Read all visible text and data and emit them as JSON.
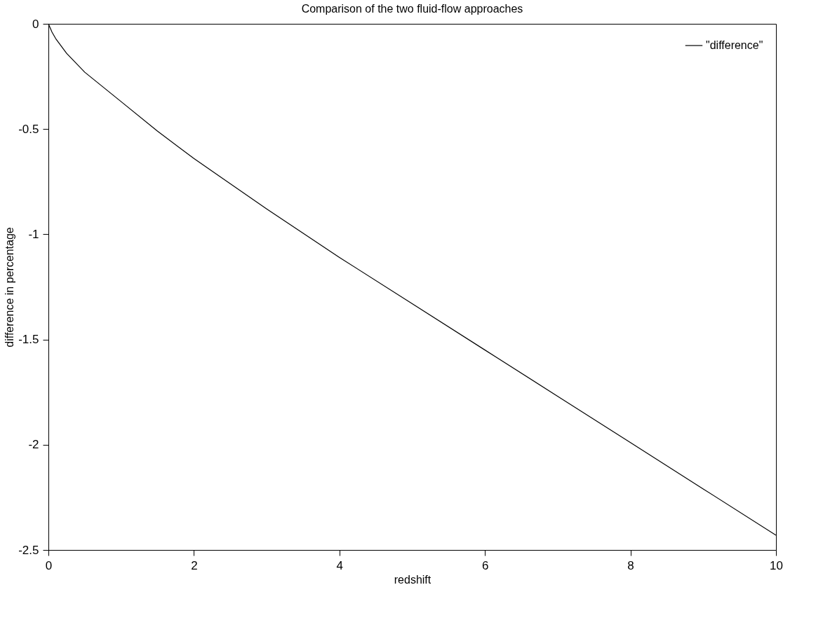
{
  "chart_data": {
    "type": "line",
    "title": "Comparison of the two fluid-flow approaches",
    "xlabel": "redshift",
    "ylabel": "difference in percentage",
    "x": [
      0,
      0.05,
      0.1,
      0.25,
      0.5,
      0.75,
      1,
      1.5,
      2,
      3,
      4,
      5,
      6,
      7,
      8,
      9,
      10
    ],
    "series": [
      {
        "name": "\"difference\"",
        "color": "#000000",
        "values": [
          0,
          -0.04,
          -0.07,
          -0.14,
          -0.23,
          -0.3,
          -0.37,
          -0.51,
          -0.64,
          -0.88,
          -1.11,
          -1.33,
          -1.55,
          -1.77,
          -1.99,
          -2.21,
          -2.43
        ]
      }
    ],
    "xlim": [
      0,
      10
    ],
    "xticks": [
      0,
      2,
      4,
      6,
      8,
      10
    ],
    "ylim": [
      -2.5,
      0
    ],
    "yticks": [
      -2.5,
      -2,
      -1.5,
      -1,
      -0.5,
      0
    ],
    "grid": false,
    "legend": "top right",
    "marker": "none",
    "line_style": "solid"
  }
}
